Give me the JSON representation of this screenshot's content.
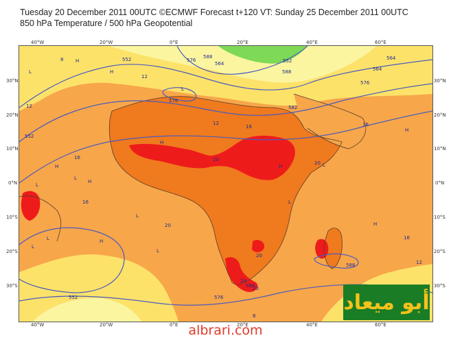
{
  "header": {
    "line1": "Tuesday 20 December 2011 00UTC ©ECMWF Forecast t+120 VT: Sunday 25 December 2011 00UTC",
    "line2": "850 hPa Temperature / 500 hPa Geopotential"
  },
  "axes": {
    "lon_top": [
      "40°W",
      "20°W",
      "0°E",
      "20°E",
      "40°E",
      "60°E"
    ],
    "lon_bottom": [
      "40°W",
      "20°W",
      "0°E",
      "20°E",
      "40°E",
      "60°E"
    ],
    "lat_left": [
      "30°N",
      "20°N",
      "10°N",
      "0°N",
      "10°S",
      "20°S",
      "30°S"
    ],
    "lat_right": [
      "30°N",
      "20°N",
      "10°N",
      "0°N",
      "10°S",
      "20°S",
      "30°S"
    ]
  },
  "map": {
    "temperature_labels": [
      "8",
      "12",
      "12",
      "12",
      "16",
      "16",
      "16",
      "16",
      "20",
      "20",
      "20",
      "20",
      "20",
      "24",
      "16",
      "12",
      "8"
    ],
    "geopotential_labels": [
      "552",
      "576",
      "552",
      "564",
      "576",
      "588",
      "588",
      "552",
      "564",
      "576",
      "582",
      "564",
      "588",
      "588",
      "576",
      "552"
    ],
    "pressure_markers": [
      "H",
      "L",
      "H",
      "L",
      "H",
      "L",
      "H",
      "L",
      "L",
      "H",
      "L",
      "H",
      "L",
      "H",
      "L",
      "H",
      "L",
      "H",
      "L"
    ],
    "colors": {
      "ocean_warm": "#f7a64a",
      "land_hot": "#f07a1e",
      "very_hot": "#ee1b1b",
      "cool_yellow": "#fde26a",
      "pale": "#fbf5a0",
      "green": "#7ed957",
      "contour_geopotential": "#4a5bbd",
      "coast": "#5a3b2a"
    }
  },
  "branding": {
    "logo_text": "أبو ميعاد",
    "site": "albrari.com"
  }
}
